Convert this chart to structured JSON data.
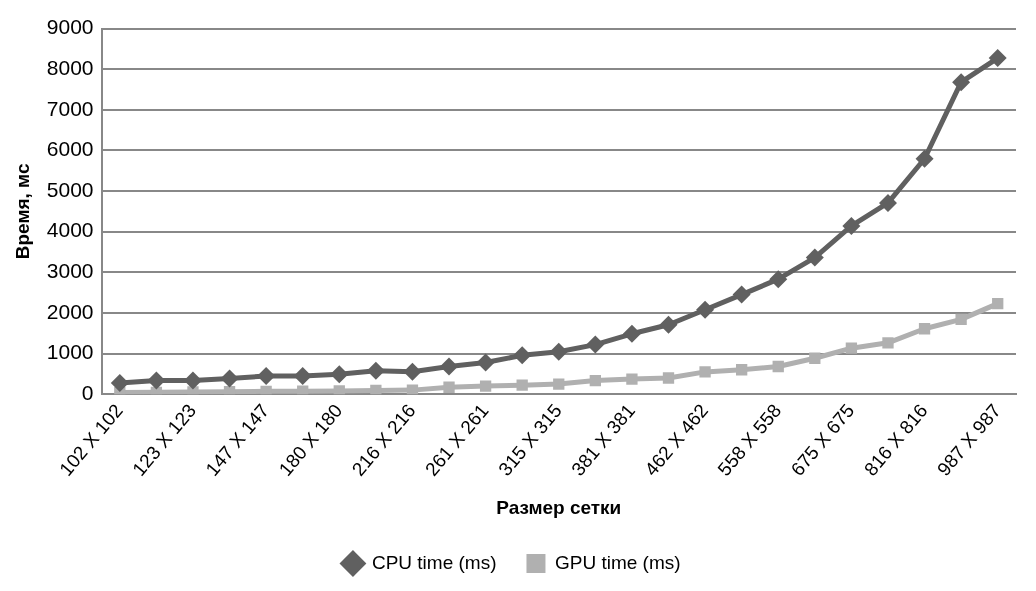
{
  "chart_data": {
    "type": "line",
    "xlabel": "Размер сетки",
    "ylabel": "Время, мс",
    "categories": [
      "102 X 102",
      null,
      "123 X 123",
      null,
      "147 X 147",
      null,
      "180 X 180",
      null,
      "216 X 216",
      null,
      "261 X 261",
      null,
      "315 X 315",
      null,
      "381 X 381",
      null,
      "462 X 462",
      null,
      "558 X 558",
      null,
      "675 X 675",
      null,
      "816 X 816",
      null,
      "987 X 987"
    ],
    "series": [
      {
        "name": "CPU time (ms)",
        "color": "#606060",
        "marker": "diamond",
        "values": [
          276,
          336,
          336,
          388,
          448,
          448,
          491,
          578,
          552,
          681,
          780,
          956,
          1044,
          1221,
          1487,
          1708,
          2080,
          2451,
          2832,
          3363,
          4142,
          4708,
          5796,
          7681,
          8274
        ]
      },
      {
        "name": "GPU time (ms)",
        "color": "#b0b0b0",
        "marker": "square",
        "values": [
          40,
          45,
          55,
          60,
          70,
          75,
          80,
          90,
          100,
          170,
          200,
          221,
          248,
          336,
          372,
          398,
          549,
          602,
          681,
          885,
          1133,
          1265,
          1611,
          1841,
          2230
        ]
      }
    ],
    "ylim": [
      0,
      9000
    ],
    "yticks": [
      0,
      1000,
      2000,
      3000,
      4000,
      5000,
      6000,
      7000,
      8000,
      9000
    ],
    "grid": "y",
    "legend": "bottom",
    "line_style": "solid"
  }
}
